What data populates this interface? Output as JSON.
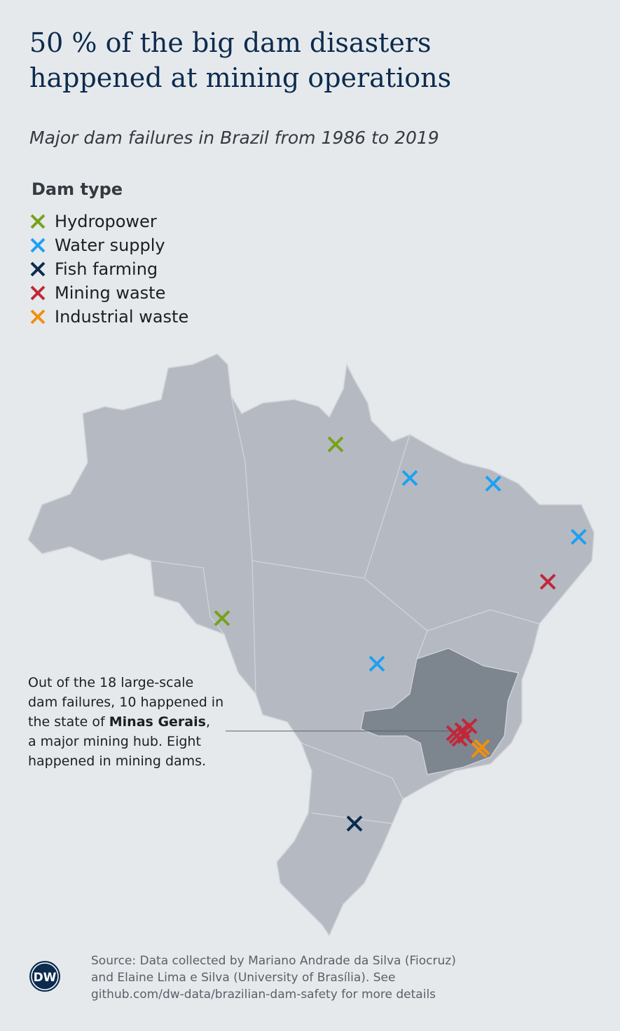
{
  "title": [
    "50 % of the big dam disasters",
    "happened at mining operations"
  ],
  "subtitle": "Major dam failures in Brazil from 1986 to 2019",
  "legend": {
    "title": "Dam type",
    "items": [
      {
        "name": "Hydropower",
        "color": "#77a21b"
      },
      {
        "name": "Water supply",
        "color": "#1da1f2"
      },
      {
        "name": "Fish farming",
        "color": "#0c2b4e"
      },
      {
        "name": "Mining waste",
        "color": "#c0283a"
      },
      {
        "name": "Industrial waste",
        "color": "#f0900f"
      }
    ]
  },
  "annotation": {
    "lines": [
      "Out of the 18 large-scale",
      "dam failures, 10 happened in",
      "the state of ",
      "a major mining hub. Eight",
      "happened in mining dams."
    ],
    "bold": "Minas Gerais",
    "after_bold": ","
  },
  "source": [
    "Source: Data collected by Mariano Andrade da Silva (Fiocruz)",
    "and Elaine Lima e Silva (University of Brasília). See",
    "github.com/dw-data/brazilian-dam-safety for more details"
  ],
  "logo": "DW"
}
